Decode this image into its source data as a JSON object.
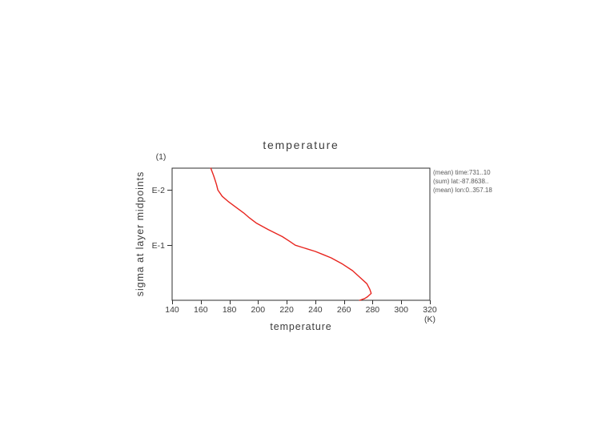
{
  "page": {
    "background": "#ffffff"
  },
  "annotations": [
    "(mean) time:731..10",
    "(sum) lat:-87.8638..",
    "(mean) lon:0..357.18"
  ],
  "chart_data": {
    "type": "line",
    "title": "temperature",
    "xlabel": "temperature",
    "x_unit": "(K)",
    "ylabel": "sigma at layer midpoints",
    "y_unit": "(1)",
    "x_scale": "linear",
    "y_scale": "log",
    "y_orientation": "increasing-downward",
    "xlim": [
      140,
      320
    ],
    "ylim": [
      0.004,
      1.0
    ],
    "x_ticks": [
      140,
      160,
      180,
      200,
      220,
      240,
      260,
      280,
      300,
      320
    ],
    "y_ticks": [
      {
        "label": "E-2",
        "value": 0.01
      },
      {
        "label": "E-1",
        "value": 0.1
      }
    ],
    "grid": false,
    "legend": false,
    "series": [
      {
        "name": "temperature",
        "color": "#e8251f",
        "sigma": [
          0.004,
          0.0055,
          0.0066,
          0.008,
          0.01,
          0.013,
          0.016,
          0.02,
          0.026,
          0.032,
          0.04,
          0.052,
          0.07,
          0.085,
          0.1,
          0.11,
          0.13,
          0.15,
          0.17,
          0.22,
          0.29,
          0.38,
          0.5,
          0.63,
          0.75,
          0.86,
          0.93,
          1.0
        ],
        "temperature_K": [
          167,
          169,
          170,
          171,
          172,
          175,
          179,
          184,
          190,
          194,
          199,
          207,
          217,
          222,
          226,
          231,
          240,
          246,
          251,
          259,
          266,
          271,
          276,
          278,
          279,
          276.5,
          274.5,
          271
        ]
      }
    ]
  },
  "colors": {
    "curve": "#e8251f",
    "axis": "#2e2e2e",
    "text": "#3c3c3c",
    "annotation_text": "#5a5a5a"
  }
}
